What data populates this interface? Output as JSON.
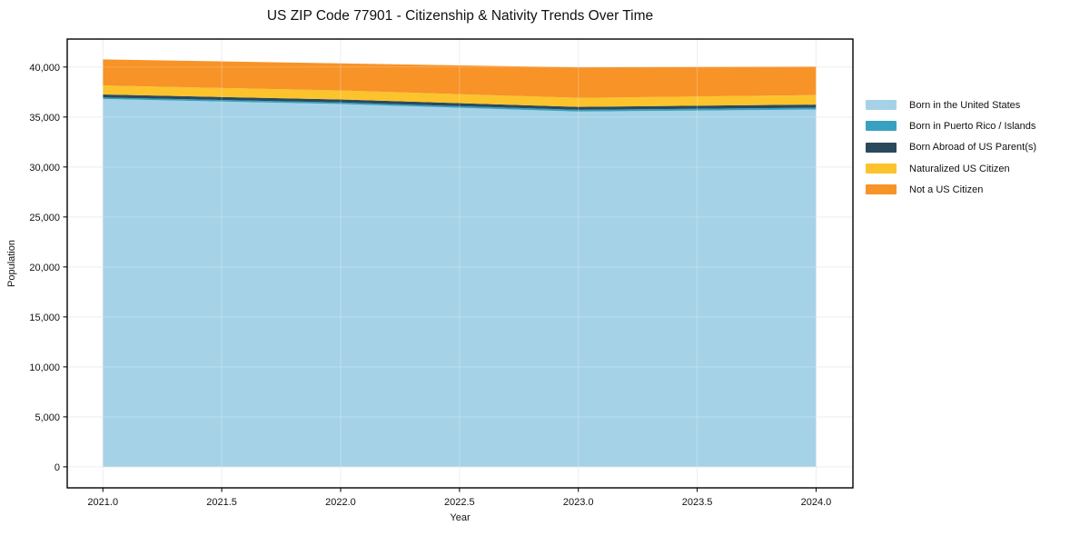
{
  "chart_data": {
    "type": "area",
    "stacked": true,
    "title": "US ZIP Code 77901 - Citizenship & Nativity Trends Over Time",
    "xlabel": "Year",
    "ylabel": "Population",
    "x": [
      2021,
      2022,
      2023,
      2024
    ],
    "series": [
      {
        "name": "Born in the United States",
        "color": "#a6d2e7",
        "values": [
          36800,
          36300,
          35550,
          35750
        ]
      },
      {
        "name": "Born in Puerto Rico / Islands",
        "color": "#38a1c2",
        "values": [
          160,
          160,
          170,
          180
        ]
      },
      {
        "name": "Born Abroad of US Parent(s)",
        "color": "#2a4a5c",
        "values": [
          300,
          300,
          300,
          320
        ]
      },
      {
        "name": "Naturalized US Citizen",
        "color": "#fcc32d",
        "values": [
          900,
          900,
          900,
          950
        ]
      },
      {
        "name": "Not a US Citizen",
        "color": "#f79327",
        "values": [
          2600,
          2700,
          3050,
          2850
        ]
      }
    ],
    "xlim": [
      2020.85,
      2024.155
    ],
    "ylim": [
      -2100,
      42800
    ],
    "x_ticks": [
      2021.0,
      2021.5,
      2022.0,
      2022.5,
      2023.0,
      2023.5,
      2024.0
    ],
    "x_tick_labels": [
      "2021.0",
      "2021.5",
      "2022.0",
      "2022.5",
      "2023.0",
      "2023.5",
      "2024.0"
    ],
    "y_ticks": [
      0,
      5000,
      10000,
      15000,
      20000,
      25000,
      30000,
      35000,
      40000
    ],
    "y_tick_labels": [
      "0",
      "5,000",
      "10,000",
      "15,000",
      "20,000",
      "25,000",
      "30,000",
      "35,000",
      "40,000"
    ],
    "grid": true,
    "legend_position": "right",
    "colors": {
      "frame": "#000000",
      "gridline": "#e9e9e9",
      "background": "#ffffff"
    }
  }
}
